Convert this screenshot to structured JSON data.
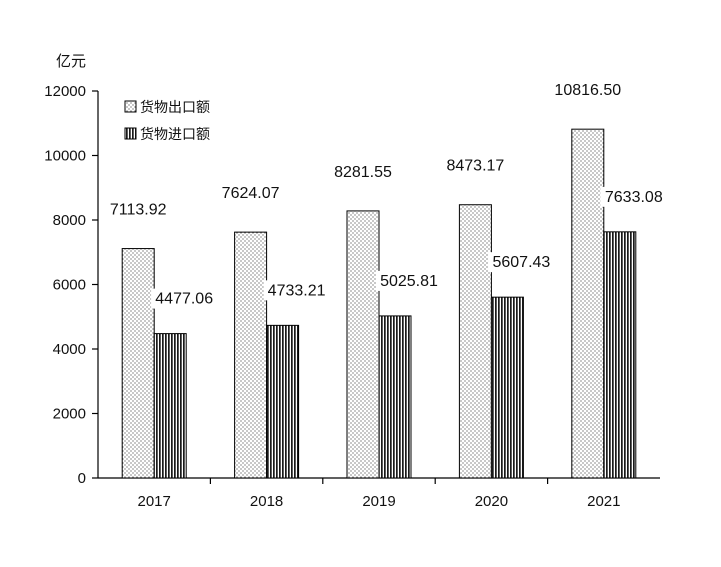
{
  "chart_data": {
    "type": "bar",
    "ylabel": "亿元",
    "ylim": [
      0,
      12000
    ],
    "yticks": [
      0,
      2000,
      4000,
      6000,
      8000,
      10000,
      12000
    ],
    "ytick_labels": [
      "0",
      "2000",
      "4000",
      "6000",
      "8000",
      "10000",
      "12000"
    ],
    "categories": [
      "2017",
      "2018",
      "2019",
      "2020",
      "2021"
    ],
    "series": [
      {
        "name": "货物出口额",
        "values": [
          7113.92,
          7624.07,
          8281.55,
          8473.17,
          10816.5
        ],
        "labels": [
          "7113.92",
          "7624.07",
          "8281.55",
          "8473.17",
          "10816.50"
        ],
        "pattern": "dotted"
      },
      {
        "name": "货物进口额",
        "values": [
          4477.06,
          4733.21,
          5025.81,
          5607.43,
          7633.08
        ],
        "labels": [
          "4477.06",
          "4733.21",
          "5025.81",
          "5607.43",
          "7633.08"
        ],
        "pattern": "vertical-stripes"
      }
    ],
    "legend_position": "top-left",
    "grid": false,
    "colors": {
      "axis": "#000000",
      "bar_fill": "#ffffff",
      "pattern_ink": "#222222"
    }
  }
}
